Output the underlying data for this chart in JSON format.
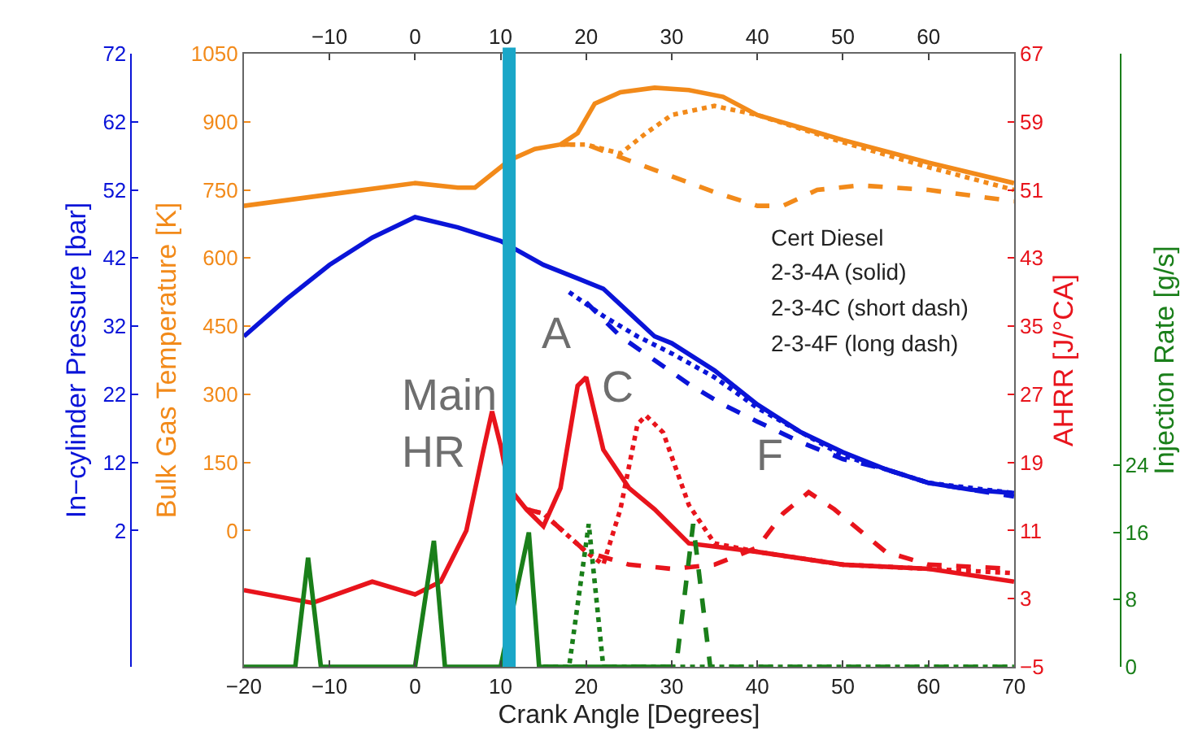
{
  "chart_data": [
    {
      "type": "line",
      "xlabel": "Crank Angle [Degrees]",
      "ylabel": "In−cylinder Pressure [bar]",
      "y2label": "Bulk Gas Temperature [K]",
      "y3label": "AHRR [J/°CA]",
      "xlim": [
        -20,
        70
      ],
      "xticks": [
        {
          "value": -20,
          "label": "−20"
        },
        {
          "value": -10,
          "label": "−10"
        },
        0,
        10,
        20,
        30,
        40,
        50,
        60,
        70
      ],
      "x2lim": [
        -20,
        70
      ],
      "x2ticks": [
        {
          "value": -10,
          "label": "−10"
        },
        0,
        10,
        20,
        30,
        40,
        50,
        60
      ],
      "ylim": [
        -18,
        72
      ],
      "yticks": [
        2,
        12,
        22,
        32,
        42,
        52,
        62,
        72
      ],
      "y2lim": [
        -300,
        1050
      ],
      "y2ticks": [
        0,
        150,
        300,
        450,
        600,
        750,
        900,
        1050
      ],
      "y3lim": [
        -5,
        67
      ],
      "y3ticks": [
        {
          "value": -5,
          "label": "−5"
        },
        3,
        11,
        19,
        27,
        35,
        43,
        51,
        59,
        67
      ],
      "series": [
        {
          "axis": "y2",
          "color": "#f28a1a",
          "line_style": "solid",
          "x": [
            -20,
            -10,
            0,
            5,
            7,
            9,
            11,
            14,
            17,
            19,
            21,
            24,
            28,
            32,
            36,
            40,
            50,
            60,
            70
          ],
          "values": [
            715,
            740,
            765,
            755,
            755,
            785,
            815,
            840,
            850,
            875,
            940,
            965,
            975,
            970,
            955,
            915,
            860,
            810,
            765
          ]
        },
        {
          "axis": "y2",
          "color": "#f28a1a",
          "line_style": "dotted",
          "x": [
            17,
            20,
            24,
            27,
            30,
            35,
            40,
            50,
            60,
            70
          ],
          "values": [
            850,
            850,
            830,
            875,
            915,
            935,
            915,
            855,
            800,
            750
          ]
        },
        {
          "axis": "y2",
          "color": "#f28a1a",
          "line_style": "dashed",
          "x": [
            17,
            20,
            25,
            30,
            35,
            40,
            43,
            47,
            52,
            60,
            70
          ],
          "values": [
            850,
            850,
            815,
            780,
            745,
            715,
            715,
            750,
            760,
            750,
            725
          ]
        },
        {
          "color": "#0a14d8",
          "line_style": "solid",
          "x": [
            -20,
            -15,
            -10,
            -5,
            0,
            5,
            10,
            15,
            19,
            22,
            25,
            28,
            30,
            35,
            40,
            45,
            50,
            55,
            60,
            65,
            70
          ],
          "values": [
            30.5,
            36,
            41,
            45,
            48,
            46.5,
            44.5,
            41,
            39,
            37.5,
            34,
            30.5,
            29.5,
            25.5,
            20.5,
            16.5,
            13.5,
            11,
            9,
            8,
            7.5
          ]
        },
        {
          "color": "#0a14d8",
          "line_style": "dotted",
          "x": [
            18,
            22,
            26,
            30,
            35,
            40,
            50,
            60,
            70
          ],
          "values": [
            37,
            33.5,
            30.5,
            28,
            24.5,
            20,
            13,
            9,
            7.5
          ]
        },
        {
          "color": "#0a14d8",
          "line_style": "dashed",
          "x": [
            20,
            24,
            28,
            32,
            36,
            40,
            45,
            50,
            55,
            60,
            70
          ],
          "values": [
            35.5,
            30.5,
            27,
            23.5,
            20.5,
            18,
            15,
            12.5,
            11,
            9,
            7
          ]
        },
        {
          "axis": "y3",
          "color": "#e8141c",
          "line_style": "solid",
          "x": [
            -20,
            -12,
            -5,
            0,
            3,
            6,
            8,
            9,
            10,
            11,
            13,
            15,
            17,
            19,
            20,
            22,
            25,
            28,
            32,
            40,
            50,
            60,
            70
          ],
          "values": [
            4,
            2.5,
            5,
            3.5,
            5,
            11,
            20.5,
            25,
            21,
            16,
            13.5,
            11.5,
            16,
            28,
            29,
            20.5,
            16,
            13.5,
            9.5,
            8.5,
            7,
            6.5,
            5
          ]
        },
        {
          "axis": "y3",
          "color": "#e8141c",
          "line_style": "dotted",
          "x": [
            13,
            15,
            20,
            22,
            24,
            26,
            27,
            29,
            32,
            35,
            40,
            50,
            70
          ],
          "values": [
            13.5,
            13,
            8.5,
            7,
            13.5,
            23.5,
            24.5,
            22.5,
            14,
            9.5,
            8.5,
            7,
            6
          ]
        },
        {
          "axis": "y3",
          "color": "#e8141c",
          "line_style": "dashed",
          "x": [
            13,
            15,
            20,
            25,
            30,
            35,
            40,
            43,
            46,
            49,
            55,
            60,
            70
          ],
          "values": [
            13.5,
            13,
            8.5,
            7,
            6.5,
            7,
            9,
            13,
            15.5,
            13.5,
            8.5,
            7,
            6.5
          ]
        }
      ],
      "ref_lines": [
        {
          "axis": "x",
          "value": 11,
          "color": "#1aa7c8"
        }
      ],
      "annotations": [
        "Main\nHR",
        "A",
        "C",
        "F",
        "Cert Diesel",
        "2-3-4A (solid)",
        "2-3-4C (short dash)",
        "2-3-4F (long dash)"
      ]
    },
    {
      "type": "line",
      "ylabel": "Injection Rate [g/s]",
      "xlim": [
        -20,
        70
      ],
      "ylim": [
        0,
        73
      ],
      "yticks": [
        0,
        8,
        16,
        24
      ],
      "tick_labels": "y",
      "series": [
        {
          "color": "#1a7f1a",
          "line_style": "solid",
          "x": [
            -20,
            -14,
            -12.5,
            -11,
            0,
            2.2,
            3.5,
            10,
            13.3,
            14.5,
            30
          ],
          "values": [
            0,
            0,
            13,
            0,
            0,
            15,
            0,
            0,
            16,
            0,
            0
          ]
        },
        {
          "color": "#1a7f1a",
          "line_style": "dotted",
          "x": [
            15,
            18,
            20.3,
            22,
            70
          ],
          "values": [
            0,
            0,
            17,
            0,
            0
          ]
        },
        {
          "color": "#1a7f1a",
          "line_style": "dashed",
          "x": [
            15,
            30.5,
            32.5,
            34.5,
            70
          ],
          "values": [
            0,
            0,
            17,
            0,
            0
          ]
        }
      ]
    }
  ]
}
